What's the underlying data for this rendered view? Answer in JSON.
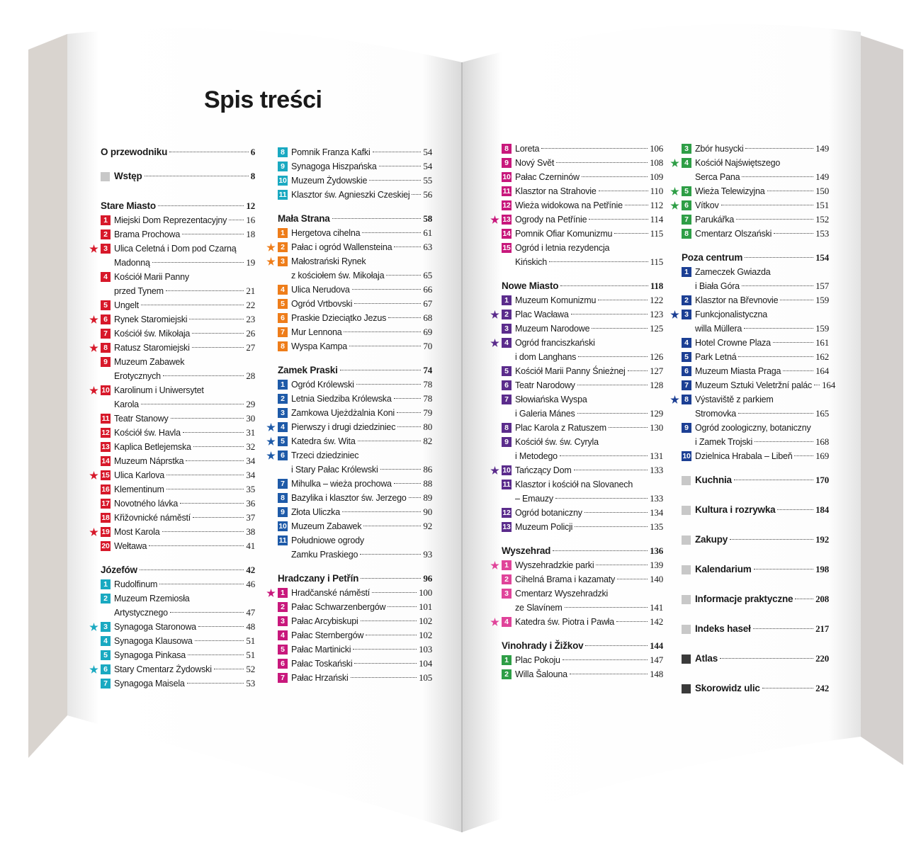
{
  "title": "Spis treści",
  "columns": [
    [
      {
        "title": "O przewodniku",
        "page": 6
      },
      {
        "title": "Wstęp",
        "page": 8,
        "marker": "gray"
      },
      {
        "title": "Stare Miasto",
        "page": 12,
        "color": "#d7192a",
        "entries": [
          {
            "n": 1,
            "lines": [
              "Miejski Dom Reprezentacyjny"
            ],
            "page": 16
          },
          {
            "n": 2,
            "lines": [
              "Brama Prochowa"
            ],
            "page": 18
          },
          {
            "n": 3,
            "star": true,
            "lines": [
              "Ulica Celetná i Dom pod Czarną",
              "Madonną"
            ],
            "page": 19
          },
          {
            "n": 4,
            "lines": [
              "Kościół Marii Panny",
              "przed Tynem"
            ],
            "page": 21
          },
          {
            "n": 5,
            "lines": [
              "Ungelt"
            ],
            "page": 22
          },
          {
            "n": 6,
            "star": true,
            "lines": [
              "Rynek Staromiejski"
            ],
            "page": 23
          },
          {
            "n": 7,
            "lines": [
              "Kościół św. Mikołaja"
            ],
            "page": 26
          },
          {
            "n": 8,
            "star": true,
            "lines": [
              "Ratusz Staromiejski"
            ],
            "page": 27
          },
          {
            "n": 9,
            "lines": [
              "Muzeum Zabawek",
              "Erotycznych"
            ],
            "page": 28
          },
          {
            "n": 10,
            "star": true,
            "lines": [
              "Karolinum i Uniwersytet",
              "Karola"
            ],
            "page": 29
          },
          {
            "n": 11,
            "lines": [
              "Teatr Stanowy"
            ],
            "page": 30
          },
          {
            "n": 12,
            "lines": [
              "Kościół św. Havla"
            ],
            "page": 31
          },
          {
            "n": 13,
            "lines": [
              "Kaplica Betlejemska"
            ],
            "page": 32
          },
          {
            "n": 14,
            "lines": [
              "Muzeum Náprstka"
            ],
            "page": 34
          },
          {
            "n": 15,
            "star": true,
            "lines": [
              "Ulica Karlova"
            ],
            "page": 34
          },
          {
            "n": 16,
            "lines": [
              "Klementinum"
            ],
            "page": 35
          },
          {
            "n": 17,
            "lines": [
              "Novotného lávka"
            ],
            "page": 36
          },
          {
            "n": 18,
            "lines": [
              "Křižovnické náměstí"
            ],
            "page": 37
          },
          {
            "n": 19,
            "star": true,
            "lines": [
              "Most Karola"
            ],
            "page": 38
          },
          {
            "n": 20,
            "lines": [
              "Wełtawa"
            ],
            "page": 41
          }
        ]
      },
      {
        "title": "Józefów",
        "page": 42,
        "color": "#1aa9c1",
        "entries": [
          {
            "n": 1,
            "lines": [
              "Rudolfinum"
            ],
            "page": 46
          },
          {
            "n": 2,
            "lines": [
              "Muzeum Rzemiosła",
              "Artystycznego"
            ],
            "page": 47
          },
          {
            "n": 3,
            "star": true,
            "lines": [
              "Synagoga Staronowa"
            ],
            "page": 48
          },
          {
            "n": 4,
            "lines": [
              "Synagoga Klausowa"
            ],
            "page": 51
          },
          {
            "n": 5,
            "lines": [
              "Synagoga Pinkasa"
            ],
            "page": 51
          },
          {
            "n": 6,
            "star": true,
            "lines": [
              "Stary Cmentarz Żydowski"
            ],
            "page": 52
          },
          {
            "n": 7,
            "lines": [
              "Synagoga Maisela"
            ],
            "page": 53
          }
        ]
      }
    ],
    [
      {
        "color": "#1aa9c1",
        "entries": [
          {
            "n": 8,
            "lines": [
              "Pomnik Franza Kafki"
            ],
            "page": 54
          },
          {
            "n": 9,
            "lines": [
              "Synagoga Hiszpańska"
            ],
            "page": 54
          },
          {
            "n": 10,
            "lines": [
              "Muzeum Żydowskie"
            ],
            "page": 55
          },
          {
            "n": 11,
            "lines": [
              "Klasztor św. Agnieszki Czeskiej"
            ],
            "page": 56
          }
        ]
      },
      {
        "title": "Mała Strana",
        "page": 58,
        "color": "#ee7d1a",
        "entries": [
          {
            "n": 1,
            "lines": [
              "Hergetova cihelna"
            ],
            "page": 61
          },
          {
            "n": 2,
            "star": true,
            "lines": [
              "Pałac i ogród Wallensteina"
            ],
            "page": 63
          },
          {
            "n": 3,
            "star": true,
            "lines": [
              "Małostrański Rynek",
              "z kościołem św. Mikołaja"
            ],
            "page": 65
          },
          {
            "n": 4,
            "lines": [
              "Ulica Nerudova"
            ],
            "page": 66
          },
          {
            "n": 5,
            "lines": [
              "Ogród Vrtbovski"
            ],
            "page": 67
          },
          {
            "n": 6,
            "lines": [
              "Praskie Dzieciątko Jezus"
            ],
            "page": 68
          },
          {
            "n": 7,
            "lines": [
              "Mur Lennona"
            ],
            "page": 69
          },
          {
            "n": 8,
            "lines": [
              "Wyspa Kampa"
            ],
            "page": 70
          }
        ]
      },
      {
        "title": "Zamek Praski",
        "page": 74,
        "color": "#1e5aa8",
        "entries": [
          {
            "n": 1,
            "lines": [
              "Ogród Królewski"
            ],
            "page": 78
          },
          {
            "n": 2,
            "lines": [
              "Letnia Siedziba Królewska"
            ],
            "page": 78
          },
          {
            "n": 3,
            "lines": [
              "Zamkowa Ujeżdżalnia Koni"
            ],
            "page": 79
          },
          {
            "n": 4,
            "star": true,
            "lines": [
              "Pierwszy i drugi dziedziniec"
            ],
            "page": 80
          },
          {
            "n": 5,
            "star": true,
            "lines": [
              "Katedra św. Wita"
            ],
            "page": 82
          },
          {
            "n": 6,
            "star": true,
            "lines": [
              "Trzeci dziedziniec",
              "i Stary Pałac Królewski"
            ],
            "page": 86
          },
          {
            "n": 7,
            "lines": [
              "Mihulka – wieża prochowa"
            ],
            "page": 88
          },
          {
            "n": 8,
            "lines": [
              "Bazylika i klasztor św. Jerzego"
            ],
            "page": 89
          },
          {
            "n": 9,
            "lines": [
              "Złota Uliczka"
            ],
            "page": 90
          },
          {
            "n": 10,
            "lines": [
              "Muzeum Zabawek"
            ],
            "page": 92
          },
          {
            "n": 11,
            "lines": [
              "Południowe ogrody",
              "Zamku Praskiego"
            ],
            "page": 93
          }
        ]
      },
      {
        "title": "Hradczany i Petřín",
        "page": 96,
        "color": "#c8187c",
        "entries": [
          {
            "n": 1,
            "star": true,
            "lines": [
              "Hradčanské náměstí"
            ],
            "page": 100
          },
          {
            "n": 2,
            "lines": [
              "Pałac Schwarzenbergów"
            ],
            "page": 101
          },
          {
            "n": 3,
            "lines": [
              "Pałac Arcybiskupi"
            ],
            "page": 102
          },
          {
            "n": 4,
            "lines": [
              "Pałac Sternbergów"
            ],
            "page": 102
          },
          {
            "n": 5,
            "lines": [
              "Pałac Martinicki"
            ],
            "page": 103
          },
          {
            "n": 6,
            "lines": [
              "Pałac Toskański"
            ],
            "page": 104
          },
          {
            "n": 7,
            "lines": [
              "Pałac Hrzański"
            ],
            "page": 105
          }
        ]
      }
    ],
    [
      {
        "color": "#c8187c",
        "entries": [
          {
            "n": 8,
            "lines": [
              "Loreta"
            ],
            "page": 106
          },
          {
            "n": 9,
            "lines": [
              "Nový Svět"
            ],
            "page": 108
          },
          {
            "n": 10,
            "lines": [
              "Pałac Czerninów"
            ],
            "page": 109
          },
          {
            "n": 11,
            "lines": [
              "Klasztor na Strahovie"
            ],
            "page": 110
          },
          {
            "n": 12,
            "lines": [
              "Wieża widokowa na Petřínie"
            ],
            "page": 112
          },
          {
            "n": 13,
            "star": true,
            "lines": [
              "Ogrody na Petřínie"
            ],
            "page": 114
          },
          {
            "n": 14,
            "lines": [
              "Pomnik Ofiar Komunizmu"
            ],
            "page": 115
          },
          {
            "n": 15,
            "lines": [
              "Ogród i letnia rezydencja",
              "Kińskich"
            ],
            "page": 115
          }
        ]
      },
      {
        "title": "Nowe Miasto",
        "page": 118,
        "color": "#5b2c8c",
        "entries": [
          {
            "n": 1,
            "lines": [
              "Muzeum Komunizmu"
            ],
            "page": 122
          },
          {
            "n": 2,
            "star": true,
            "lines": [
              "Plac Wacława"
            ],
            "page": 123
          },
          {
            "n": 3,
            "lines": [
              "Muzeum Narodowe"
            ],
            "page": 125
          },
          {
            "n": 4,
            "star": true,
            "lines": [
              "Ogród franciszkański",
              "i dom Langhans"
            ],
            "page": 126
          },
          {
            "n": 5,
            "lines": [
              "Kościół Marii Panny Śnieżnej"
            ],
            "page": 127
          },
          {
            "n": 6,
            "lines": [
              "Teatr Narodowy"
            ],
            "page": 128
          },
          {
            "n": 7,
            "lines": [
              "Słowiańska Wyspa",
              "i Galeria Mánes"
            ],
            "page": 129
          },
          {
            "n": 8,
            "lines": [
              "Plac Karola z Ratuszem"
            ],
            "page": 130
          },
          {
            "n": 9,
            "lines": [
              "Kościół św. św. Cyryla",
              "i Metodego"
            ],
            "page": 131
          },
          {
            "n": 10,
            "star": true,
            "lines": [
              "Tańczący Dom"
            ],
            "page": 133
          },
          {
            "n": 11,
            "lines": [
              "Klasztor i kościół na Slovanech",
              "– Emauzy"
            ],
            "page": 133
          },
          {
            "n": 12,
            "lines": [
              "Ogród botaniczny"
            ],
            "page": 134
          },
          {
            "n": 13,
            "lines": [
              "Muzeum Policji"
            ],
            "page": 135
          }
        ]
      },
      {
        "title": "Wyszehrad",
        "page": 136,
        "color": "#e0449a",
        "entries": [
          {
            "n": 1,
            "star": true,
            "lines": [
              "Wyszehradzkie parki"
            ],
            "page": 139
          },
          {
            "n": 2,
            "lines": [
              "Cihelná Brama i kazamaty"
            ],
            "page": 140
          },
          {
            "n": 3,
            "lines": [
              "Cmentarz Wyszehradzki",
              "ze Slavínem"
            ],
            "page": 141
          },
          {
            "n": 4,
            "star": true,
            "lines": [
              "Katedra św. Piotra i Pawła"
            ],
            "page": 142
          }
        ]
      },
      {
        "title": "Vinohrady i Žižkov",
        "page": 144,
        "color": "#2e9e46",
        "entries": [
          {
            "n": 1,
            "lines": [
              "Plac Pokoju"
            ],
            "page": 147
          },
          {
            "n": 2,
            "lines": [
              "Willa Šalouna"
            ],
            "page": 148
          }
        ]
      }
    ],
    [
      {
        "color": "#2e9e46",
        "entries": [
          {
            "n": 3,
            "lines": [
              "Zbór husycki"
            ],
            "page": 149
          },
          {
            "n": 4,
            "star": true,
            "lines": [
              "Kościół Najświętszego",
              "Serca Pana"
            ],
            "page": 149
          },
          {
            "n": 5,
            "star": true,
            "lines": [
              "Wieża Telewizyjna"
            ],
            "page": 150
          },
          {
            "n": 6,
            "star": true,
            "lines": [
              "Vítkov"
            ],
            "page": 151
          },
          {
            "n": 7,
            "lines": [
              "Parukářka"
            ],
            "page": 152
          },
          {
            "n": 8,
            "lines": [
              "Cmentarz Olszański"
            ],
            "page": 153
          }
        ]
      },
      {
        "title": "Poza centrum",
        "page": 154,
        "color": "#1c3f94",
        "entries": [
          {
            "n": 1,
            "lines": [
              "Zameczek Gwiazda",
              "i Biała Góra"
            ],
            "page": 157
          },
          {
            "n": 2,
            "lines": [
              "Klasztor na Břevnovie"
            ],
            "page": 159
          },
          {
            "n": 3,
            "star": true,
            "lines": [
              "Funkcjonalistyczna",
              "willa Müllera"
            ],
            "page": 159
          },
          {
            "n": 4,
            "lines": [
              "Hotel Crowne Plaza"
            ],
            "page": 161
          },
          {
            "n": 5,
            "lines": [
              "Park Letná"
            ],
            "page": 162
          },
          {
            "n": 6,
            "lines": [
              "Muzeum Miasta Praga"
            ],
            "page": 164
          },
          {
            "n": 7,
            "lines": [
              "Muzeum Sztuki Veletržní palác"
            ],
            "page": 164
          },
          {
            "n": 8,
            "star": true,
            "lines": [
              "Výstaviště z parkiem",
              "Stromovka"
            ],
            "page": 165
          },
          {
            "n": 9,
            "lines": [
              "Ogród zoologiczny, botaniczny",
              "i Zamek Trojski"
            ],
            "page": 168
          },
          {
            "n": 10,
            "lines": [
              "Dzielnica Hrabala – Libeň"
            ],
            "page": 169
          }
        ]
      },
      {
        "title": "Kuchnia",
        "page": 170,
        "marker": "gray"
      },
      {
        "title": "Kultura i rozrywka",
        "page": 184,
        "marker": "gray"
      },
      {
        "title": "Zakupy",
        "page": 192,
        "marker": "gray"
      },
      {
        "title": "Kalendarium",
        "page": 198,
        "marker": "gray"
      },
      {
        "title": "Informacje praktyczne",
        "page": 208,
        "marker": "gray"
      },
      {
        "title": "Indeks haseł",
        "page": 217,
        "marker": "gray"
      },
      {
        "title": "Atlas",
        "page": 220,
        "marker": "dark"
      },
      {
        "title": "Skorowidz ulic",
        "page": 242,
        "marker": "dark"
      }
    ]
  ]
}
